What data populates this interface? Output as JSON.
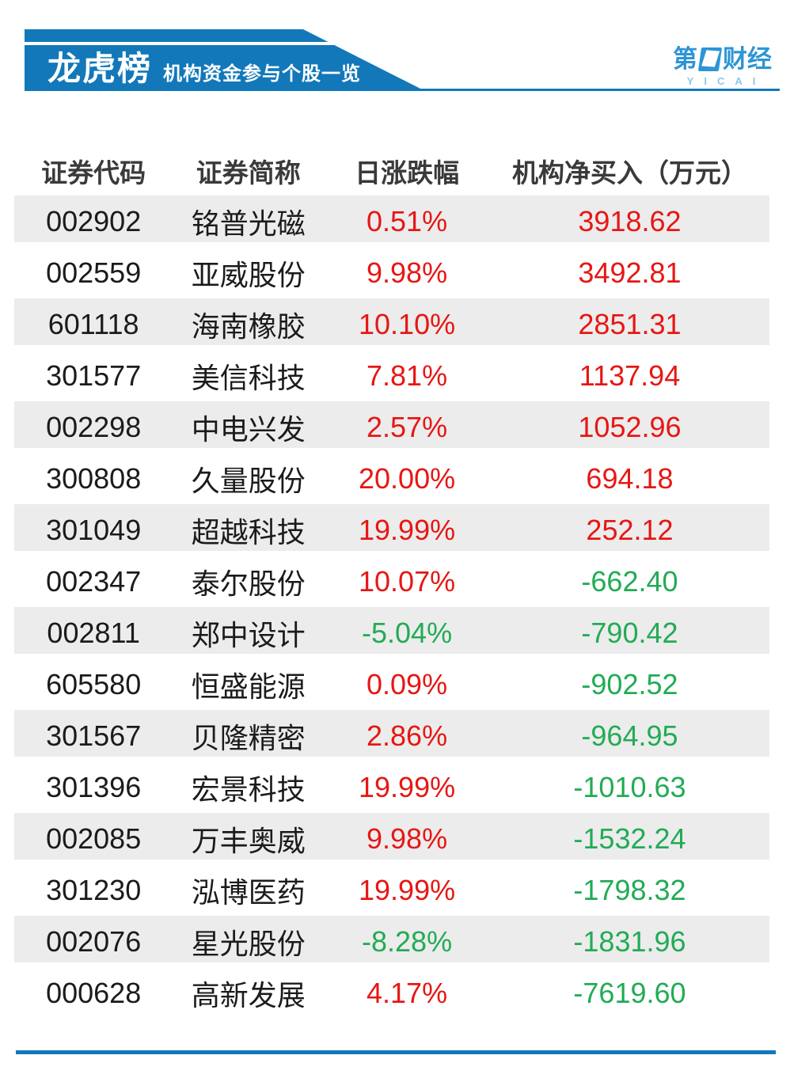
{
  "banner": {
    "title": "龙虎榜",
    "subtitle": "机构资金参与个股一览"
  },
  "logo": {
    "char_first": "第",
    "chars_rest": "财经",
    "subtext": "YICAI"
  },
  "colors": {
    "banner_blue": "#1278b9",
    "logo_blue": "#2d95d5",
    "logo_light_blue": "#8fc6e9",
    "up_red": "#e61714",
    "down_green": "#22ab55",
    "row_alt_bg": "#ececec",
    "text_dark": "#1b1b1b",
    "header_text": "#3a3a3a"
  },
  "table": {
    "columns": [
      "证券代码",
      "证券简称",
      "日涨跌幅",
      "机构净买入（万元）"
    ],
    "rows": [
      {
        "code": "002902",
        "name": "铭普光磁",
        "pct": "0.51%",
        "pct_dir": "up",
        "net": "3918.62",
        "net_dir": "up"
      },
      {
        "code": "002559",
        "name": "亚威股份",
        "pct": "9.98%",
        "pct_dir": "up",
        "net": "3492.81",
        "net_dir": "up"
      },
      {
        "code": "601118",
        "name": "海南橡胶",
        "pct": "10.10%",
        "pct_dir": "up",
        "net": "2851.31",
        "net_dir": "up"
      },
      {
        "code": "301577",
        "name": "美信科技",
        "pct": "7.81%",
        "pct_dir": "up",
        "net": "1137.94",
        "net_dir": "up"
      },
      {
        "code": "002298",
        "name": "中电兴发",
        "pct": "2.57%",
        "pct_dir": "up",
        "net": "1052.96",
        "net_dir": "up"
      },
      {
        "code": "300808",
        "name": "久量股份",
        "pct": "20.00%",
        "pct_dir": "up",
        "net": "694.18",
        "net_dir": "up"
      },
      {
        "code": "301049",
        "name": "超越科技",
        "pct": "19.99%",
        "pct_dir": "up",
        "net": "252.12",
        "net_dir": "up"
      },
      {
        "code": "002347",
        "name": "泰尔股份",
        "pct": "10.07%",
        "pct_dir": "up",
        "net": "-662.40",
        "net_dir": "down"
      },
      {
        "code": "002811",
        "name": "郑中设计",
        "pct": "-5.04%",
        "pct_dir": "down",
        "net": "-790.42",
        "net_dir": "down"
      },
      {
        "code": "605580",
        "name": "恒盛能源",
        "pct": "0.09%",
        "pct_dir": "up",
        "net": "-902.52",
        "net_dir": "down"
      },
      {
        "code": "301567",
        "name": "贝隆精密",
        "pct": "2.86%",
        "pct_dir": "up",
        "net": "-964.95",
        "net_dir": "down"
      },
      {
        "code": "301396",
        "name": "宏景科技",
        "pct": "19.99%",
        "pct_dir": "up",
        "net": "-1010.63",
        "net_dir": "down"
      },
      {
        "code": "002085",
        "name": "万丰奥威",
        "pct": "9.98%",
        "pct_dir": "up",
        "net": "-1532.24",
        "net_dir": "down"
      },
      {
        "code": "301230",
        "name": "泓博医药",
        "pct": "19.99%",
        "pct_dir": "up",
        "net": "-1798.32",
        "net_dir": "down"
      },
      {
        "code": "002076",
        "name": "星光股份",
        "pct": "-8.28%",
        "pct_dir": "down",
        "net": "-1831.96",
        "net_dir": "down"
      },
      {
        "code": "000628",
        "name": "高新发展",
        "pct": "4.17%",
        "pct_dir": "up",
        "net": "-7619.60",
        "net_dir": "down"
      }
    ]
  },
  "chart_data": {
    "type": "table",
    "title": "龙虎榜 机构资金参与个股一览",
    "columns": [
      "证券代码",
      "证券简称",
      "日涨跌幅(%)",
      "机构净买入(万元)"
    ],
    "rows": [
      [
        "002902",
        "铭普光磁",
        0.51,
        3918.62
      ],
      [
        "002559",
        "亚威股份",
        9.98,
        3492.81
      ],
      [
        "601118",
        "海南橡胶",
        10.1,
        2851.31
      ],
      [
        "301577",
        "美信科技",
        7.81,
        1137.94
      ],
      [
        "002298",
        "中电兴发",
        2.57,
        1052.96
      ],
      [
        "300808",
        "久量股份",
        20.0,
        694.18
      ],
      [
        "301049",
        "超越科技",
        19.99,
        252.12
      ],
      [
        "002347",
        "泰尔股份",
        10.07,
        -662.4
      ],
      [
        "002811",
        "郑中设计",
        -5.04,
        -790.42
      ],
      [
        "605580",
        "恒盛能源",
        0.09,
        -902.52
      ],
      [
        "301567",
        "贝隆精密",
        2.86,
        -964.95
      ],
      [
        "301396",
        "宏景科技",
        19.99,
        -1010.63
      ],
      [
        "002085",
        "万丰奥威",
        9.98,
        -1532.24
      ],
      [
        "301230",
        "泓博医药",
        19.99,
        -1798.32
      ],
      [
        "002076",
        "星光股份",
        -8.28,
        -1831.96
      ],
      [
        "000628",
        "高新发展",
        4.17,
        -7619.6
      ]
    ],
    "legend_note": "red = positive change / net buy, green = negative"
  }
}
